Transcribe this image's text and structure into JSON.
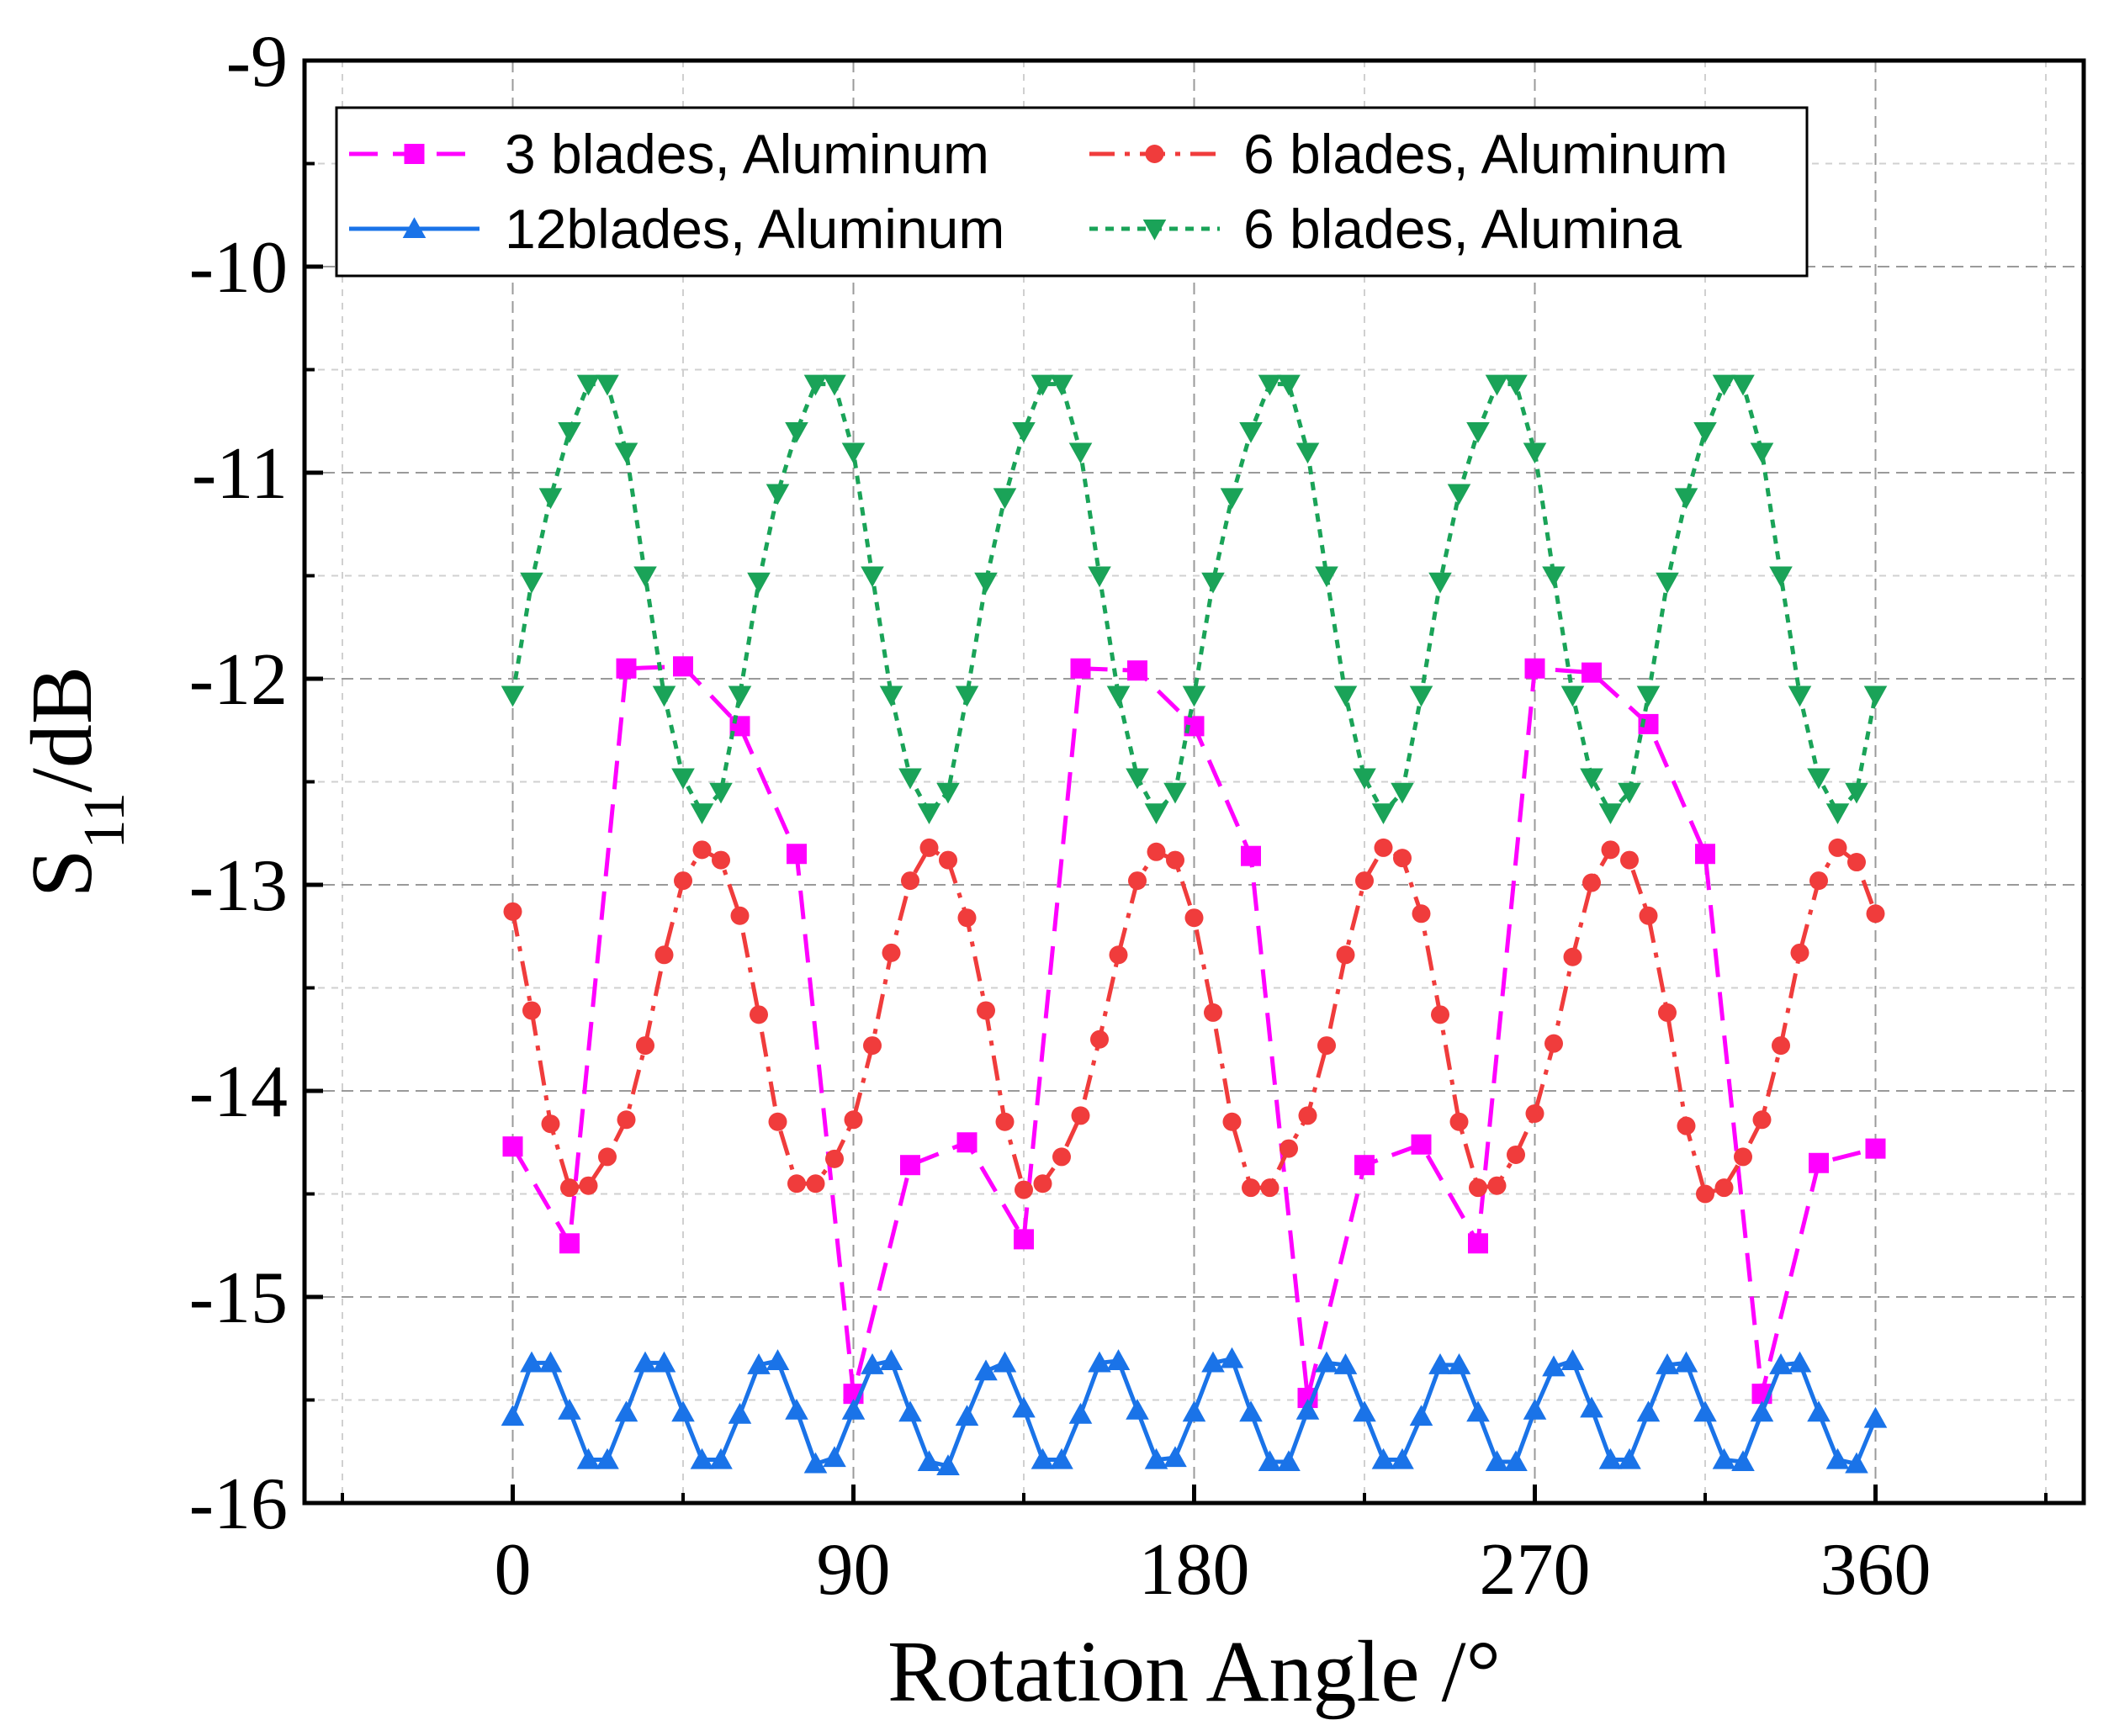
{
  "chart_data": {
    "type": "line",
    "title": "",
    "xlabel": "Rotation Angle /°",
    "ylabel_main": "S",
    "ylabel_sub": "11",
    "ylabel_rest": "/dB",
    "xlim": [
      -55,
      415
    ],
    "ylim": [
      -16,
      -9
    ],
    "xticks": [
      0,
      90,
      180,
      270,
      360
    ],
    "xtick_labels": [
      "0",
      "90",
      "180",
      "270",
      "360"
    ],
    "yticks": [
      -9,
      -10,
      -11,
      -12,
      -13,
      -14,
      -15,
      -16
    ],
    "ytick_labels": [
      "-9",
      "-10",
      "-11",
      "-12",
      "-13",
      "-14",
      "-15",
      "-16"
    ],
    "grid": true,
    "legend_position": "top-left",
    "series": [
      {
        "name": "3 blades, Aluminum",
        "color": "#ff00ff",
        "marker": "square",
        "dash": "dash",
        "x": [
          0,
          15,
          30,
          45,
          60,
          75,
          90,
          105,
          120,
          135,
          150,
          165,
          180,
          195,
          210,
          225,
          240,
          255,
          270,
          285,
          300,
          315,
          330,
          345,
          360
        ],
        "y": [
          -14.27,
          -14.74,
          -11.95,
          -11.94,
          -12.23,
          -12.85,
          -15.47,
          -14.36,
          -14.25,
          -14.72,
          -11.95,
          -11.96,
          -12.23,
          -12.86,
          -15.49,
          -14.36,
          -14.26,
          -14.74,
          -11.95,
          -11.97,
          -12.22,
          -12.85,
          -15.47,
          -14.35,
          -14.28
        ]
      },
      {
        "name": "6 blades, Aluminum",
        "color": "#f03c3c",
        "marker": "circle",
        "dash": "dashdot",
        "x": [
          0,
          5,
          10,
          15,
          20,
          25,
          30,
          35,
          40,
          45,
          50,
          55,
          60,
          65,
          70,
          75,
          80,
          85,
          90,
          95,
          100,
          105,
          110,
          115,
          120,
          125,
          130,
          135,
          140,
          145,
          150,
          155,
          160,
          165,
          170,
          175,
          180,
          185,
          190,
          195,
          200,
          205,
          210,
          215,
          220,
          225,
          230,
          235,
          240,
          245,
          250,
          255,
          260,
          265,
          270,
          275,
          280,
          285,
          290,
          295,
          300,
          305,
          310,
          315,
          320,
          325,
          330,
          335,
          340,
          345,
          350,
          355,
          360
        ],
        "y": [
          -13.13,
          -13.61,
          -14.16,
          -14.47,
          -14.46,
          -14.32,
          -14.14,
          -13.78,
          -13.34,
          -12.98,
          -12.83,
          -12.88,
          -13.15,
          -13.63,
          -14.15,
          -14.45,
          -14.45,
          -14.33,
          -14.14,
          -13.78,
          -13.33,
          -12.98,
          -12.82,
          -12.88,
          -13.16,
          -13.61,
          -14.15,
          -14.48,
          -14.45,
          -14.32,
          -14.12,
          -13.75,
          -13.34,
          -12.98,
          -12.84,
          -12.88,
          -13.16,
          -13.62,
          -14.15,
          -14.47,
          -14.47,
          -14.28,
          -14.12,
          -13.78,
          -13.34,
          -12.98,
          -12.82,
          -12.87,
          -13.14,
          -13.63,
          -14.15,
          -14.47,
          -14.46,
          -14.31,
          -14.11,
          -13.77,
          -13.35,
          -12.99,
          -12.83,
          -12.88,
          -13.15,
          -13.62,
          -14.17,
          -14.5,
          -14.47,
          -14.32,
          -14.14,
          -13.78,
          -13.33,
          -12.98,
          -12.82,
          -12.89,
          -13.14
        ]
      },
      {
        "name": "12blades, Aluminum",
        "color": "#1a73e8",
        "marker": "triangle-up",
        "dash": "solid",
        "x": [
          0,
          5,
          10,
          15,
          20,
          25,
          30,
          35,
          40,
          45,
          50,
          55,
          60,
          65,
          70,
          75,
          80,
          85,
          90,
          95,
          100,
          105,
          110,
          115,
          120,
          125,
          130,
          135,
          140,
          145,
          150,
          155,
          160,
          165,
          170,
          175,
          180,
          185,
          190,
          195,
          200,
          205,
          210,
          215,
          220,
          225,
          230,
          235,
          240,
          245,
          250,
          255,
          260,
          265,
          270,
          275,
          280,
          285,
          290,
          295,
          300,
          305,
          310,
          315,
          320,
          325,
          330,
          335,
          340,
          345,
          350,
          355,
          360
        ],
        "y": [
          -15.58,
          -15.32,
          -15.32,
          -15.55,
          -15.79,
          -15.79,
          -15.56,
          -15.32,
          -15.32,
          -15.56,
          -15.79,
          -15.79,
          -15.57,
          -15.33,
          -15.31,
          -15.55,
          -15.81,
          -15.78,
          -15.55,
          -15.33,
          -15.31,
          -15.56,
          -15.8,
          -15.82,
          -15.58,
          -15.36,
          -15.32,
          -15.54,
          -15.79,
          -15.79,
          -15.57,
          -15.32,
          -15.31,
          -15.55,
          -15.79,
          -15.78,
          -15.56,
          -15.32,
          -15.3,
          -15.56,
          -15.8,
          -15.8,
          -15.55,
          -15.32,
          -15.33,
          -15.56,
          -15.79,
          -15.79,
          -15.58,
          -15.33,
          -15.33,
          -15.56,
          -15.8,
          -15.8,
          -15.55,
          -15.34,
          -15.31,
          -15.54,
          -15.79,
          -15.79,
          -15.56,
          -15.33,
          -15.32,
          -15.56,
          -15.79,
          -15.8,
          -15.56,
          -15.33,
          -15.32,
          -15.56,
          -15.79,
          -15.81,
          -15.59
        ]
      },
      {
        "name": "6 blades, Alumina",
        "color": "#1aa358",
        "marker": "triangle-down",
        "dash": "dot",
        "x": [
          0,
          5,
          10,
          15,
          20,
          25,
          30,
          35,
          40,
          45,
          50,
          55,
          60,
          65,
          70,
          75,
          80,
          85,
          90,
          95,
          100,
          105,
          110,
          115,
          120,
          125,
          130,
          135,
          140,
          145,
          150,
          155,
          160,
          165,
          170,
          175,
          180,
          185,
          190,
          195,
          200,
          205,
          210,
          215,
          220,
          225,
          230,
          235,
          240,
          245,
          250,
          255,
          260,
          265,
          270,
          275,
          280,
          285,
          290,
          295,
          300,
          305,
          310,
          315,
          320,
          325,
          330,
          335,
          340,
          345,
          350,
          355,
          360
        ],
        "y": [
          -12.08,
          -11.53,
          -11.12,
          -10.8,
          -10.57,
          -10.57,
          -10.9,
          -11.5,
          -12.08,
          -12.48,
          -12.65,
          -12.55,
          -12.08,
          -11.53,
          -11.1,
          -10.8,
          -10.57,
          -10.57,
          -10.9,
          -11.5,
          -12.08,
          -12.48,
          -12.65,
          -12.55,
          -12.08,
          -11.53,
          -11.12,
          -10.8,
          -10.57,
          -10.57,
          -10.9,
          -11.5,
          -12.08,
          -12.48,
          -12.65,
          -12.55,
          -12.08,
          -11.53,
          -11.12,
          -10.8,
          -10.57,
          -10.57,
          -10.9,
          -11.5,
          -12.08,
          -12.48,
          -12.65,
          -12.55,
          -12.08,
          -11.53,
          -11.1,
          -10.8,
          -10.57,
          -10.57,
          -10.9,
          -11.5,
          -12.08,
          -12.48,
          -12.65,
          -12.55,
          -12.08,
          -11.53,
          -11.12,
          -10.8,
          -10.57,
          -10.57,
          -10.9,
          -11.5,
          -12.08,
          -12.48,
          -12.65,
          -12.55,
          -12.08
        ]
      }
    ]
  }
}
